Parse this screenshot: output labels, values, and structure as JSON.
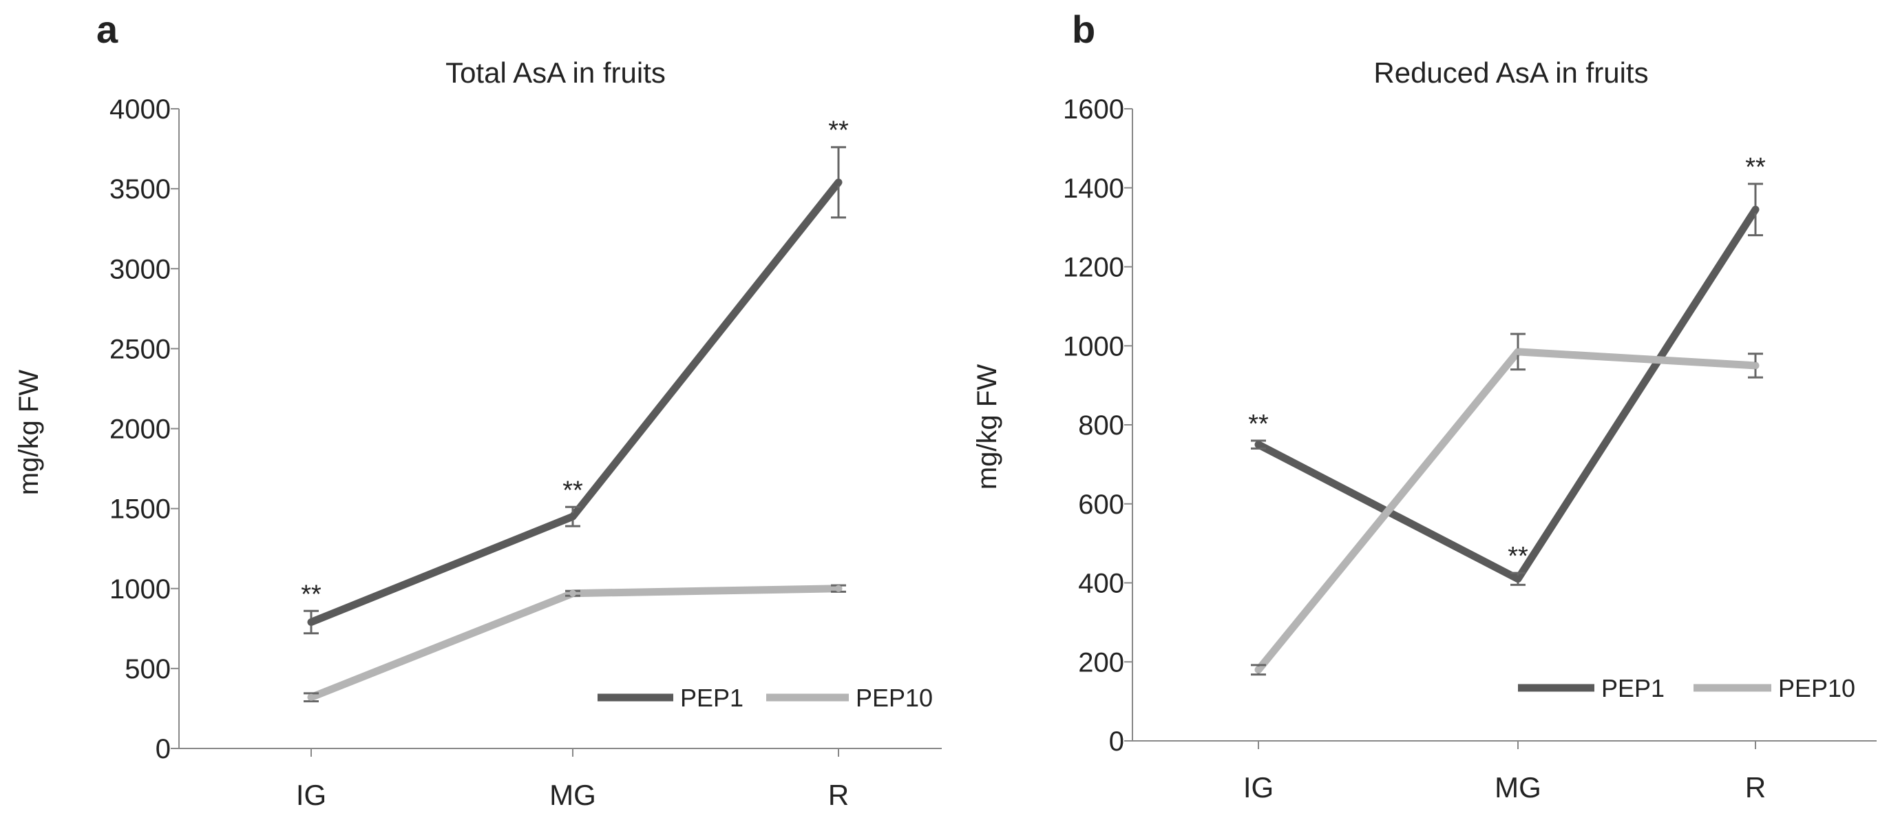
{
  "chart_data": [
    {
      "panel_label": "a",
      "type": "line",
      "title": "Total AsA in fruits",
      "xlabel": "",
      "ylabel": "mg/kg FW",
      "categories": [
        "IG",
        "MG",
        "R"
      ],
      "ylim": [
        0,
        4000
      ],
      "yticks": [
        0,
        500,
        1000,
        1500,
        2000,
        2500,
        3000,
        3500,
        4000
      ],
      "legend_position": "bottom-right",
      "series": [
        {
          "name": "PEP1",
          "color": "#5a5a5a",
          "values": [
            790,
            1450,
            3540
          ],
          "errors": [
            70,
            60,
            220
          ],
          "significance": [
            "**",
            "**",
            "**"
          ]
        },
        {
          "name": "PEP10",
          "color": "#b4b4b4",
          "values": [
            320,
            970,
            1000
          ],
          "errors": [
            25,
            15,
            20
          ],
          "significance": [
            "",
            "",
            ""
          ]
        }
      ]
    },
    {
      "panel_label": "b",
      "type": "line",
      "title": "Reduced AsA in fruits",
      "xlabel": "",
      "ylabel": "mg/kg FW",
      "categories": [
        "IG",
        "MG",
        "R"
      ],
      "ylim": [
        0,
        1600
      ],
      "yticks": [
        0,
        200,
        400,
        600,
        800,
        1000,
        1200,
        1400,
        1600
      ],
      "legend_position": "bottom-right",
      "series": [
        {
          "name": "PEP1",
          "color": "#5a5a5a",
          "values": [
            750,
            410,
            1345
          ],
          "errors": [
            10,
            15,
            65
          ],
          "significance": [
            "**",
            "**",
            "**"
          ]
        },
        {
          "name": "PEP10",
          "color": "#b4b4b4",
          "values": [
            180,
            985,
            950
          ],
          "errors": [
            12,
            45,
            30
          ],
          "significance": [
            "",
            "",
            ""
          ]
        }
      ]
    }
  ]
}
